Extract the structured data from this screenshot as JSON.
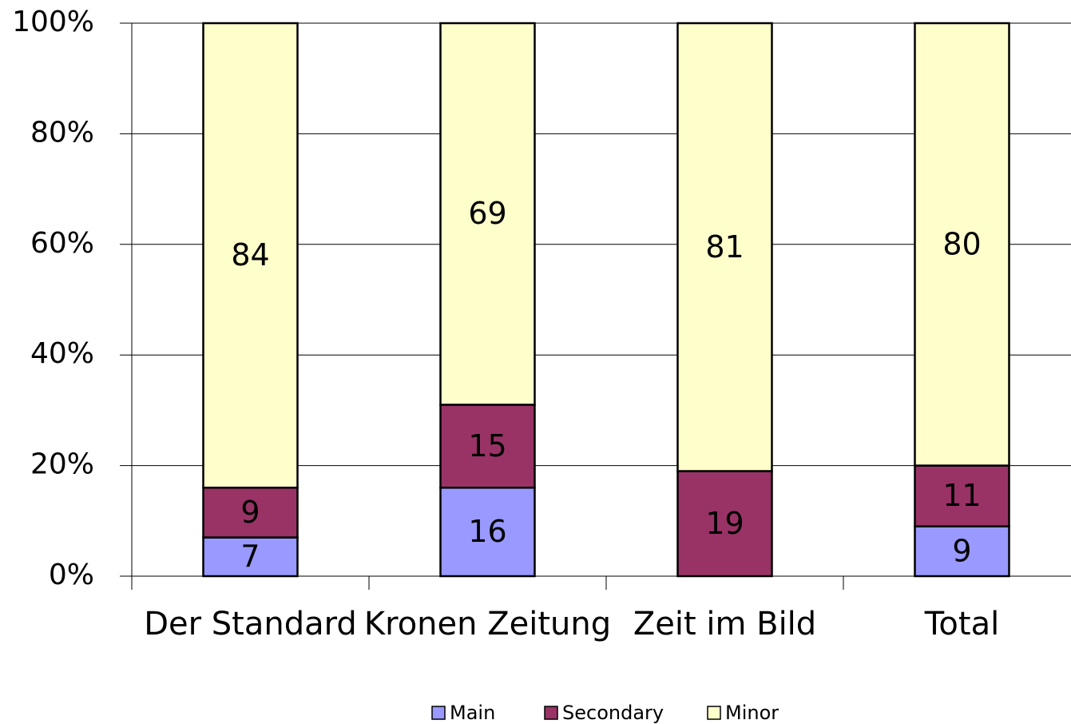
{
  "chart_data": {
    "type": "bar",
    "stacked": true,
    "categories": [
      "Der Standard",
      "Kronen Zeitung",
      "Zeit im Bild",
      "Total"
    ],
    "series": [
      {
        "name": "Main",
        "color": "#9999ff",
        "values": [
          7,
          16,
          null,
          9
        ]
      },
      {
        "name": "Secondary",
        "color": "#993366",
        "values": [
          9,
          15,
          19,
          11
        ]
      },
      {
        "name": "Minor",
        "color": "#ffffcc",
        "values": [
          84,
          69,
          81,
          80
        ]
      }
    ],
    "ylim": [
      0,
      100
    ],
    "yticks": [
      {
        "value": 0,
        "label": "0%"
      },
      {
        "value": 20,
        "label": "20%"
      },
      {
        "value": 40,
        "label": "40%"
      },
      {
        "value": 60,
        "label": "60%"
      },
      {
        "value": 80,
        "label": "80%"
      },
      {
        "value": 100,
        "label": "100%"
      }
    ],
    "grid": true,
    "legend": "bottom"
  }
}
